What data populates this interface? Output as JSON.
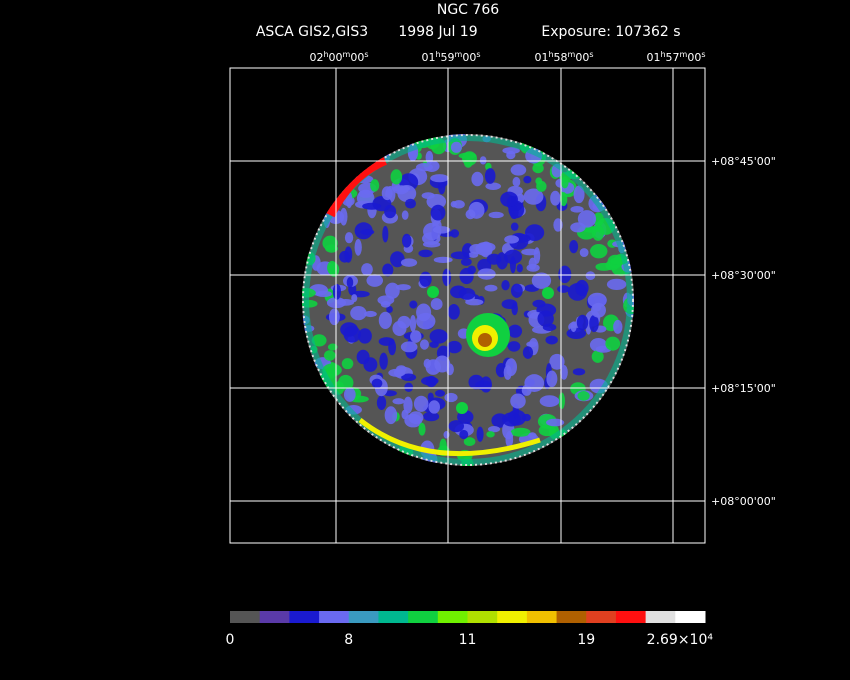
{
  "header": {
    "title": "NGC 766",
    "instrument": "ASCA GIS2,GIS3",
    "date": "1998 Jul 19",
    "exposure": "Exposure: 107362 s"
  },
  "ra_labels": [
    "02h00m00s",
    "01h59m00s",
    "01h58m00s",
    "01h57m00s"
  ],
  "dec_labels": [
    "+08°45'00\"",
    "+08°30'00\"",
    "+08°15'00\"",
    "+08°00'00\""
  ],
  "colorbar": {
    "colors": [
      "#555555",
      "#5a3aa8",
      "#1a1ad0",
      "#6a6af0",
      "#3a9ac0",
      "#00b890",
      "#10d040",
      "#70f000",
      "#b0e000",
      "#f0f000",
      "#f0c000",
      "#b06000",
      "#e04020",
      "#ff1010",
      "#e0e0e0",
      "#ffffff"
    ],
    "labels": [
      "0",
      "8",
      "11",
      "19",
      "2.69×10⁴"
    ]
  }
}
